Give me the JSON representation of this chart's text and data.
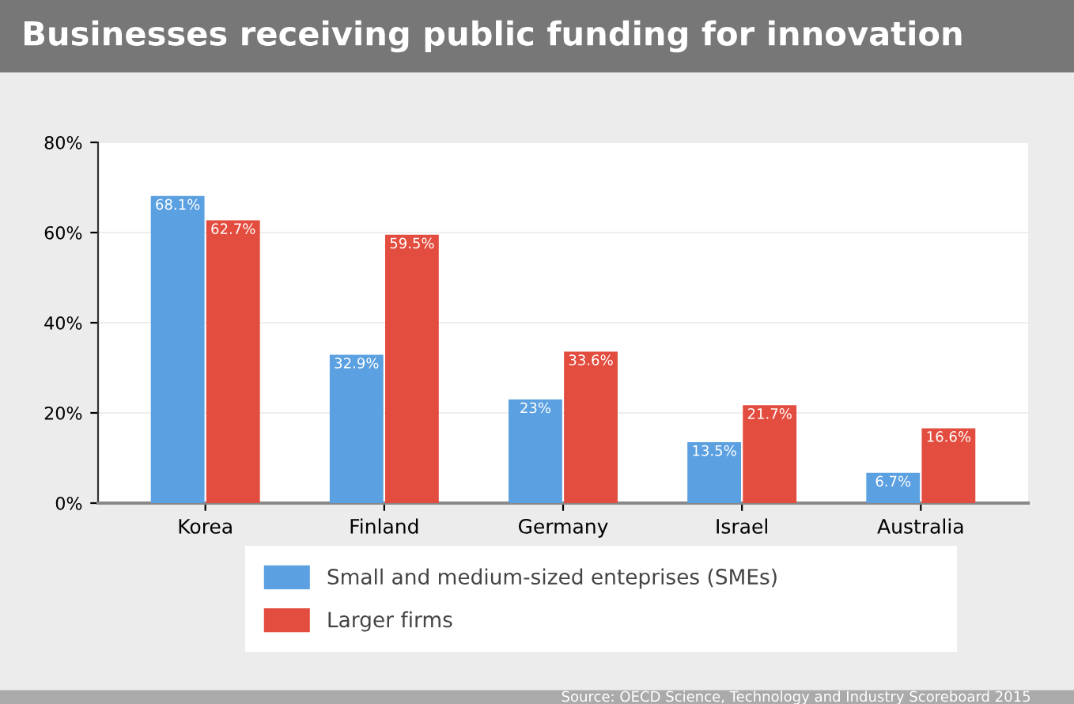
{
  "chart_data": {
    "type": "bar",
    "title": "Businesses receiving public funding for innovation",
    "categories": [
      "Korea",
      "Finland",
      "Germany",
      "Israel",
      "Australia"
    ],
    "series": [
      {
        "name": "Small and medium-sized enteprises (SMEs)",
        "color": "#5ba0e0",
        "values": [
          68.1,
          32.9,
          23,
          13.5,
          6.7
        ],
        "value_labels": [
          "68.1%",
          "32.9%",
          "23%",
          "13.5%",
          "6.7%"
        ]
      },
      {
        "name": "Larger firms",
        "color": "#e34d3f",
        "values": [
          62.7,
          59.5,
          33.6,
          21.7,
          16.6
        ],
        "value_labels": [
          "62.7%",
          "59.5%",
          "33.6%",
          "21.7%",
          "16.6%"
        ]
      }
    ],
    "ylim": [
      0,
      80
    ],
    "yticks": [
      {
        "value": 0,
        "label": "0%"
      },
      {
        "value": 20,
        "label": "20%"
      },
      {
        "value": 40,
        "label": "40%"
      },
      {
        "value": 60,
        "label": "60%"
      },
      {
        "value": 80,
        "label": "80%"
      }
    ],
    "grid": "y",
    "legend": "bottom",
    "annotations": [
      "Source: OECD Science, Technology and Industry Scoreboard 2015"
    ]
  }
}
